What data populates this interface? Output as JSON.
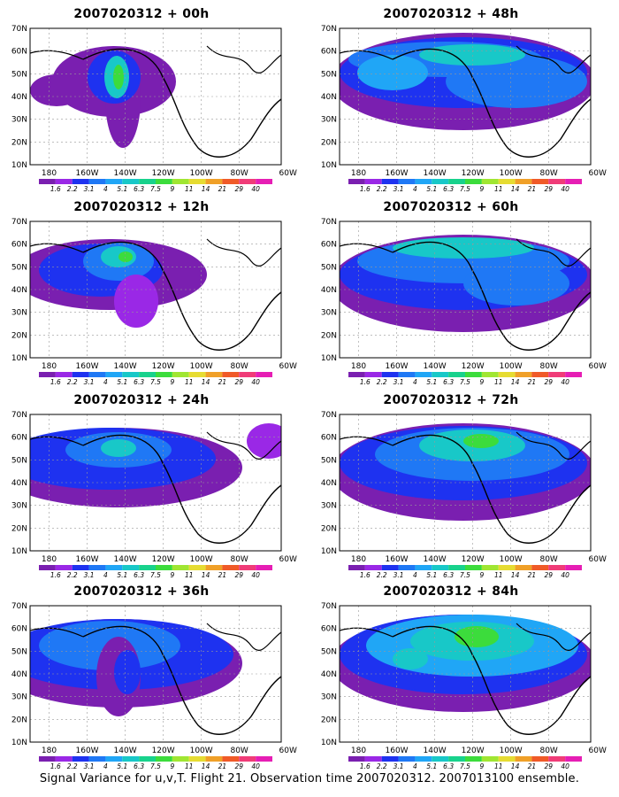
{
  "panels": [
    {
      "title": "2007020312 + 00h"
    },
    {
      "title": "2007020312 + 48h"
    },
    {
      "title": "2007020312 + 12h"
    },
    {
      "title": "2007020312 + 60h"
    },
    {
      "title": "2007020312 + 24h"
    },
    {
      "title": "2007020312 + 72h"
    },
    {
      "title": "2007020312 + 36h"
    },
    {
      "title": "2007020312 + 84h"
    }
  ],
  "lat_labels": [
    "70N",
    "60N",
    "50N",
    "40N",
    "30N",
    "20N",
    "10N"
  ],
  "lon_labels": [
    "180",
    "160W",
    "140W",
    "120W",
    "100W",
    "80W",
    "60W"
  ],
  "colorbar": {
    "labels": [
      "1.6",
      "2.2",
      "3.1",
      "4",
      "5.1",
      "6.3",
      "7.5",
      "9",
      "11",
      "14",
      "21",
      "29",
      "40"
    ],
    "colors": [
      "#7a1fb0",
      "#9a28e6",
      "#1e32f0",
      "#1f78f5",
      "#20a6f6",
      "#18c8c8",
      "#18d28c",
      "#3cdc3c",
      "#a0e632",
      "#e6dc32",
      "#f0a028",
      "#f05a28",
      "#f03c78",
      "#e61eb4"
    ]
  },
  "footer": "Signal Variance for u,v,T. Flight 21. Observation time 2007020312. 2007013100 ensemble."
}
